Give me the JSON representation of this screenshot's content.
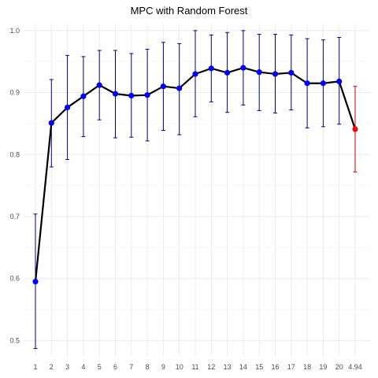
{
  "chart_data": {
    "type": "line",
    "title": "MPC with Random Forest",
    "xlabel": "",
    "ylabel": "",
    "categories": [
      "1",
      "2",
      "3",
      "4",
      "5",
      "6",
      "7",
      "8",
      "9",
      "10",
      "11",
      "12",
      "13",
      "14",
      "15",
      "16",
      "17",
      "18",
      "19",
      "20",
      "4.94"
    ],
    "values": [
      0.595,
      0.851,
      0.876,
      0.894,
      0.912,
      0.898,
      0.895,
      0.896,
      0.91,
      0.907,
      0.93,
      0.939,
      0.932,
      0.94,
      0.933,
      0.93,
      0.932,
      0.915,
      0.915,
      0.918,
      0.841
    ],
    "error_lower": [
      0.487,
      0.78,
      0.792,
      0.829,
      0.856,
      0.827,
      0.828,
      0.822,
      0.839,
      0.832,
      0.861,
      0.885,
      0.868,
      0.88,
      0.871,
      0.867,
      0.872,
      0.843,
      0.845,
      0.849,
      0.772
    ],
    "error_upper": [
      0.704,
      0.921,
      0.96,
      0.958,
      0.968,
      0.968,
      0.963,
      0.97,
      0.981,
      0.979,
      1.0,
      0.993,
      0.997,
      1.0,
      0.994,
      0.994,
      0.993,
      0.987,
      0.985,
      0.989,
      0.91
    ],
    "ylim": [
      0.475,
      1.01
    ],
    "y_ticks": [
      "0.5",
      "0.6",
      "0.7",
      "0.8",
      "0.9",
      "1.0"
    ],
    "grid": true,
    "legend": "none",
    "colors": {
      "line": "#000000",
      "point": "#0000ff",
      "errorbar": "#00008b",
      "highlight_point": "#ff0000",
      "highlight_errorbar": "#cd0000",
      "grid_major": "#ebebeb",
      "grid_minor": "#f5f5f5"
    },
    "highlight_index": 20
  }
}
